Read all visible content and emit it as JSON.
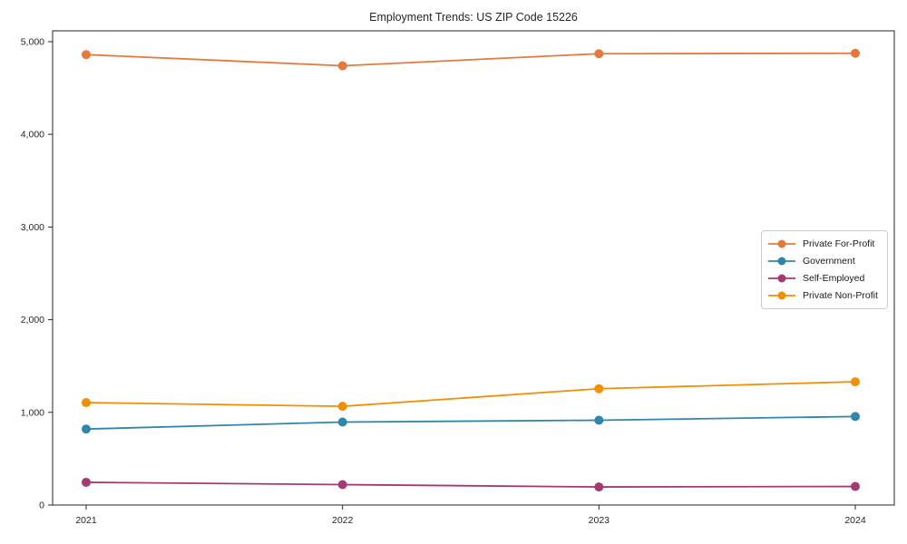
{
  "chart_data": {
    "type": "line",
    "title": "Employment Trends: US ZIP Code 15226",
    "x": [
      2021,
      2022,
      2023,
      2024
    ],
    "xtick_labels": [
      "2021",
      "2022",
      "2023",
      "2024"
    ],
    "series": [
      {
        "name": "Private For-Profit",
        "color": "#E5793D",
        "values": [
          4860,
          4740,
          4870,
          4875
        ]
      },
      {
        "name": "Government",
        "color": "#2E86AB",
        "values": [
          820,
          895,
          915,
          955
        ]
      },
      {
        "name": "Self-Employed",
        "color": "#A23B72",
        "values": [
          245,
          220,
          195,
          200
        ]
      },
      {
        "name": "Private Non-Profit",
        "color": "#F18F01",
        "values": [
          1105,
          1065,
          1255,
          1330
        ]
      }
    ],
    "xlabel": "",
    "ylabel": "",
    "ylim": [
      0,
      5117
    ],
    "yticks": [
      0,
      1000,
      2000,
      3000,
      4000,
      5000
    ],
    "ytick_labels": [
      "0",
      "1,000",
      "2,000",
      "3,000",
      "4,000",
      "5,000"
    ],
    "grid": false,
    "legend_position": "center right",
    "marker": "circle",
    "frame_color": "#262626",
    "background_color": "#ffffff"
  }
}
